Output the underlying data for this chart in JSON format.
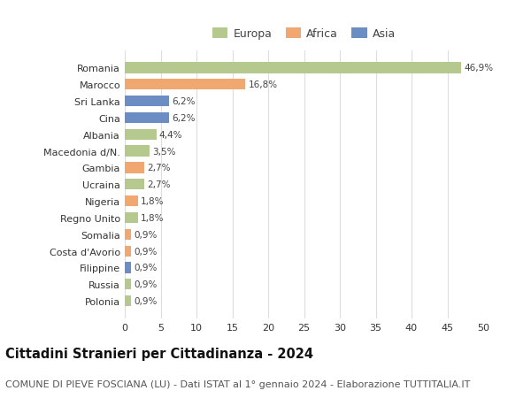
{
  "categories": [
    "Polonia",
    "Russia",
    "Filippine",
    "Costa d'Avorio",
    "Somalia",
    "Regno Unito",
    "Nigeria",
    "Ucraina",
    "Gambia",
    "Macedonia d/N.",
    "Albania",
    "Cina",
    "Sri Lanka",
    "Marocco",
    "Romania"
  ],
  "values": [
    0.9,
    0.9,
    0.9,
    0.9,
    0.9,
    1.8,
    1.8,
    2.7,
    2.7,
    3.5,
    4.4,
    6.2,
    6.2,
    16.8,
    46.9
  ],
  "labels": [
    "0,9%",
    "0,9%",
    "0,9%",
    "0,9%",
    "0,9%",
    "1,8%",
    "1,8%",
    "2,7%",
    "2,7%",
    "3,5%",
    "4,4%",
    "6,2%",
    "6,2%",
    "16,8%",
    "46,9%"
  ],
  "colors": [
    "#b5c98e",
    "#b5c98e",
    "#6b8dc4",
    "#f0a870",
    "#f0a870",
    "#b5c98e",
    "#f0a870",
    "#b5c98e",
    "#f0a870",
    "#b5c98e",
    "#b5c98e",
    "#6b8dc4",
    "#6b8dc4",
    "#f0a870",
    "#b5c98e"
  ],
  "legend_labels": [
    "Europa",
    "Africa",
    "Asia"
  ],
  "legend_colors": [
    "#b5c98e",
    "#f0a870",
    "#6b8dc4"
  ],
  "title": "Cittadini Stranieri per Cittadinanza - 2024",
  "subtitle": "COMUNE DI PIEVE FOSCIANA (LU) - Dati ISTAT al 1° gennaio 2024 - Elaborazione TUTTITALIA.IT",
  "xlim": [
    0,
    50
  ],
  "xticks": [
    0,
    5,
    10,
    15,
    20,
    25,
    30,
    35,
    40,
    45,
    50
  ],
  "bg_color": "#ffffff",
  "grid_color": "#dddddd",
  "bar_height": 0.65,
  "title_fontsize": 10.5,
  "subtitle_fontsize": 8,
  "label_fontsize": 7.5,
  "tick_fontsize": 8,
  "legend_fontsize": 9
}
